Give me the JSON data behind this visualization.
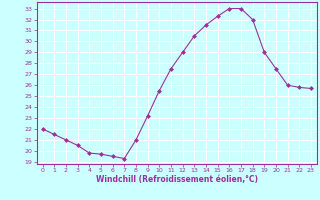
{
  "x": [
    0,
    1,
    2,
    3,
    4,
    5,
    6,
    7,
    8,
    9,
    10,
    11,
    12,
    13,
    14,
    15,
    16,
    17,
    18,
    19,
    20,
    21,
    22,
    23
  ],
  "y": [
    22.0,
    21.5,
    21.0,
    20.5,
    19.8,
    19.7,
    19.5,
    19.3,
    21.0,
    23.2,
    25.5,
    27.5,
    29.0,
    30.5,
    31.5,
    32.3,
    33.0,
    33.0,
    32.0,
    29.0,
    27.5,
    26.0,
    25.8,
    25.7
  ],
  "line_color": "#993399",
  "marker": "D",
  "marker_size": 2,
  "bg_color": "#ccffff",
  "grid_color": "#ffffff",
  "tick_color": "#993399",
  "label_color": "#993399",
  "xlabel": "Windchill (Refroidissement éolien,°C)",
  "ylim": [
    18.8,
    33.6
  ],
  "xlim": [
    -0.5,
    23.5
  ],
  "yticks": [
    19,
    20,
    21,
    22,
    23,
    24,
    25,
    26,
    27,
    28,
    29,
    30,
    31,
    32,
    33
  ],
  "xticks": [
    0,
    1,
    2,
    3,
    4,
    5,
    6,
    7,
    8,
    9,
    10,
    11,
    12,
    13,
    14,
    15,
    16,
    17,
    18,
    19,
    20,
    21,
    22,
    23
  ]
}
